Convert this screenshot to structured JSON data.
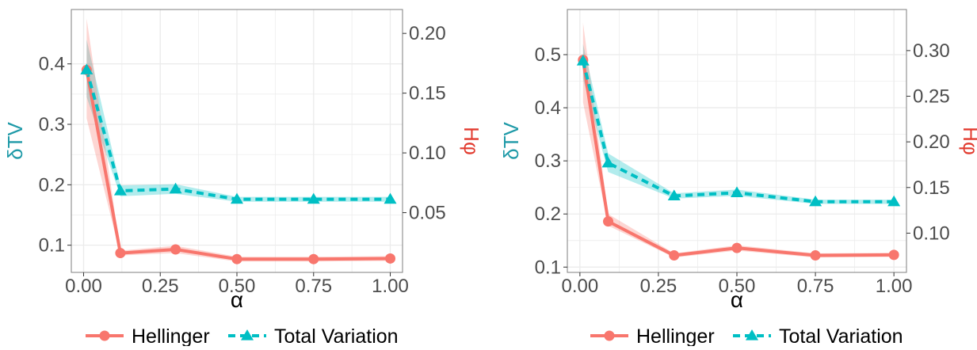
{
  "legend": {
    "hellinger_label": "Hellinger",
    "tv_label": "Total Variation"
  },
  "colors": {
    "hellinger": "#f8766d",
    "tv": "#00bfc4",
    "tv_axis_title": "#1f9aa8",
    "hellinger_axis_title": "#e23b2f",
    "tick_label": "#4d4d4d",
    "grid": "#ebebeb",
    "panel_border": "#7f7f7f"
  },
  "chart_data": [
    {
      "type": "line",
      "xlabel": "α",
      "ylabel_left": "δTV",
      "ylabel_right": "Hφ",
      "xlim": [
        -0.04,
        1.04
      ],
      "ylim_left": [
        0.055,
        0.49
      ],
      "ylim_right": [
        0.0,
        0.22
      ],
      "xticks": [
        0.0,
        0.25,
        0.5,
        0.75,
        1.0
      ],
      "xtick_labels": [
        "0.00",
        "0.25",
        "0.50",
        "0.75",
        "1.00"
      ],
      "yticks_left": [
        0.1,
        0.2,
        0.3,
        0.4
      ],
      "ytick_labels_left": [
        "0.1",
        "0.2",
        "0.3",
        "0.4"
      ],
      "yticks_right": [
        0.05,
        0.1,
        0.15,
        0.2
      ],
      "ytick_labels_right": [
        "0.05",
        "0.10",
        "0.15",
        "0.20"
      ],
      "series": [
        {
          "name": "Hellinger",
          "x": [
            0.01,
            0.12,
            0.3,
            0.5,
            0.75,
            1.0
          ],
          "y": [
            0.39,
            0.087,
            0.093,
            0.077,
            0.077,
            0.078
          ],
          "lower": [
            0.31,
            0.083,
            0.087,
            0.073,
            0.073,
            0.074
          ],
          "upper": [
            0.475,
            0.091,
            0.099,
            0.081,
            0.081,
            0.082
          ]
        },
        {
          "name": "Total Variation",
          "x": [
            0.01,
            0.12,
            0.3,
            0.5,
            0.75,
            1.0
          ],
          "y": [
            0.39,
            0.19,
            0.193,
            0.176,
            0.176,
            0.176
          ],
          "lower": [
            0.345,
            0.181,
            0.185,
            0.172,
            0.172,
            0.172
          ],
          "upper": [
            0.44,
            0.199,
            0.201,
            0.18,
            0.18,
            0.18
          ]
        }
      ],
      "grid": true,
      "legend_position": "bottom"
    },
    {
      "type": "line",
      "xlabel": "α",
      "ylabel_left": "δTV",
      "ylabel_right": "Hφ",
      "xlim": [
        -0.04,
        1.04
      ],
      "ylim_left": [
        0.09,
        0.585
      ],
      "ylim_right": [
        0.057,
        0.345
      ],
      "xticks": [
        0.0,
        0.25,
        0.5,
        0.75,
        1.0
      ],
      "xtick_labels": [
        "0.00",
        "0.25",
        "0.50",
        "0.75",
        "1.00"
      ],
      "yticks_left": [
        0.1,
        0.2,
        0.3,
        0.4,
        0.5
      ],
      "ytick_labels_left": [
        "0.1",
        "0.2",
        "0.3",
        "0.4",
        "0.5"
      ],
      "yticks_right": [
        0.1,
        0.15,
        0.2,
        0.25,
        0.3
      ],
      "ytick_labels_right": [
        "0.10",
        "0.15",
        "0.20",
        "0.25",
        "0.30"
      ],
      "series": [
        {
          "name": "Hellinger",
          "x": [
            0.01,
            0.09,
            0.3,
            0.5,
            0.75,
            1.0
          ],
          "y": [
            0.49,
            0.186,
            0.122,
            0.136,
            0.122,
            0.123
          ],
          "lower": [
            0.41,
            0.178,
            0.118,
            0.131,
            0.118,
            0.119
          ],
          "upper": [
            0.56,
            0.2,
            0.126,
            0.141,
            0.126,
            0.127
          ]
        },
        {
          "name": "Total Variation",
          "x": [
            0.01,
            0.09,
            0.3,
            0.5,
            0.75,
            1.0
          ],
          "y": [
            0.488,
            0.296,
            0.234,
            0.24,
            0.223,
            0.223
          ],
          "lower": [
            0.455,
            0.279,
            0.229,
            0.234,
            0.219,
            0.219
          ],
          "upper": [
            0.52,
            0.314,
            0.239,
            0.246,
            0.227,
            0.227
          ]
        }
      ],
      "grid": true,
      "legend_position": "bottom"
    }
  ]
}
